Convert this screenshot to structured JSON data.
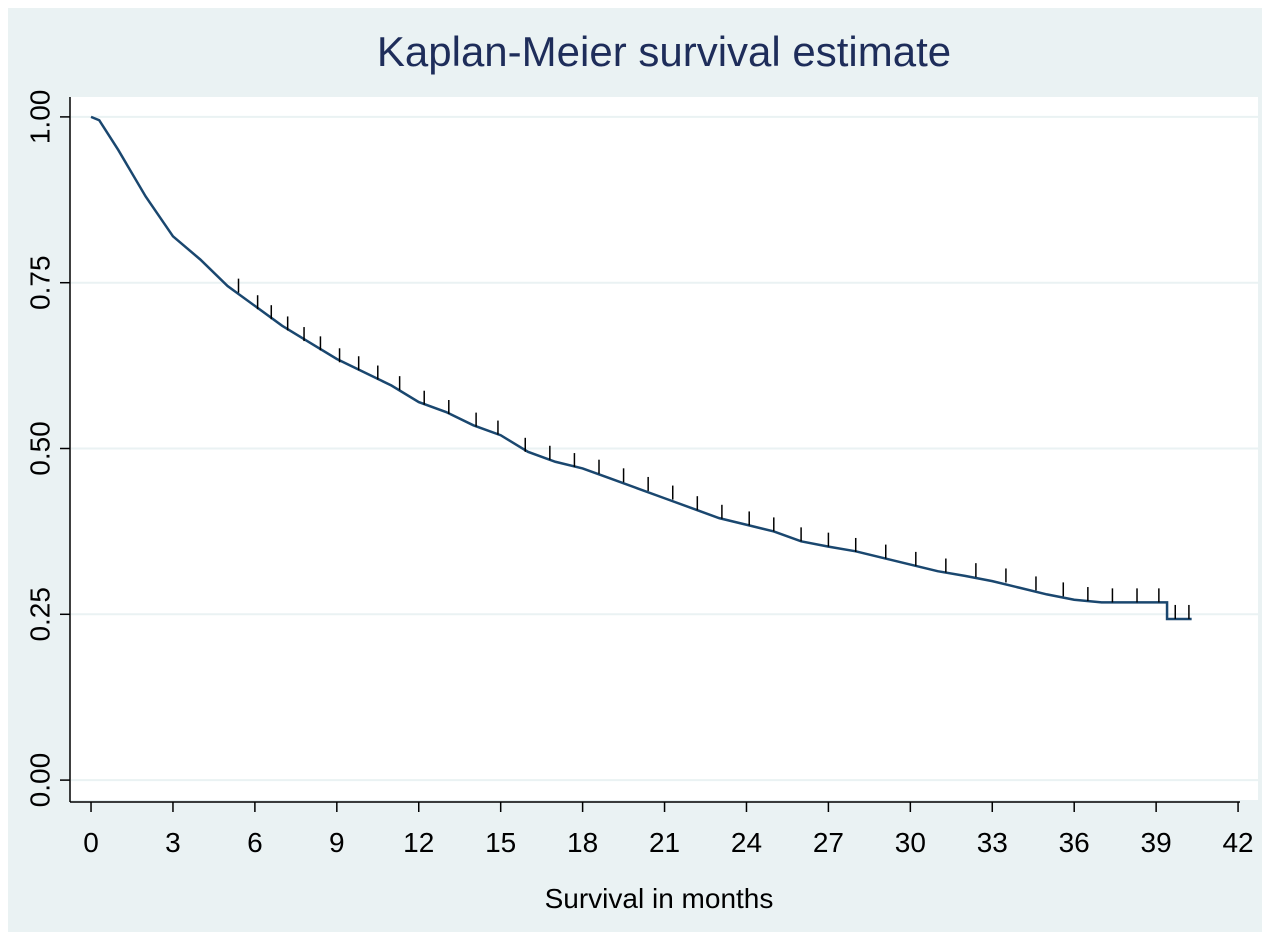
{
  "chart_data": {
    "type": "line",
    "title": "Kaplan-Meier survival estimate",
    "xlabel": "Survival in months",
    "xlim": [
      -0.77,
      42.73
    ],
    "ylim": [
      -0.03,
      1.03
    ],
    "xticks": [
      0,
      3,
      6,
      9,
      12,
      15,
      18,
      21,
      24,
      27,
      30,
      33,
      36,
      39,
      42
    ],
    "yticks": [
      {
        "value": 0,
        "label": "0.00"
      },
      {
        "value": 0.25,
        "label": "0.25"
      },
      {
        "value": 0.5,
        "label": "0.50"
      },
      {
        "value": 0.75,
        "label": "0.75"
      },
      {
        "value": 1,
        "label": "1.00"
      }
    ],
    "grid": true,
    "series": [
      {
        "color": "#1a476f",
        "x": [
          0,
          0.3,
          1,
          2,
          3,
          4,
          5,
          6,
          7,
          8,
          9,
          10,
          11,
          12,
          13,
          14,
          15,
          16,
          17,
          18,
          19,
          20,
          21,
          22,
          23,
          24,
          25,
          26,
          27,
          28,
          29,
          30,
          31,
          32,
          33,
          34,
          35,
          36,
          37,
          38,
          39.4,
          39.4,
          40.3
        ],
        "values": [
          1,
          0.995,
          0.95,
          0.88,
          0.82,
          0.785,
          0.745,
          0.715,
          0.685,
          0.66,
          0.635,
          0.615,
          0.595,
          0.57,
          0.555,
          0.535,
          0.52,
          0.495,
          0.48,
          0.47,
          0.455,
          0.44,
          0.425,
          0.41,
          0.395,
          0.385,
          0.375,
          0.36,
          0.352,
          0.345,
          0.335,
          0.325,
          0.315,
          0.308,
          0.3,
          0.29,
          0.28,
          0.272,
          0.268,
          0.268,
          0.268,
          0.243,
          0.243
        ]
      }
    ],
    "censored": {
      "color": "#000000",
      "x": [
        5.4,
        6.1,
        6.6,
        7.2,
        7.8,
        8.4,
        9.1,
        9.8,
        10.5,
        11.3,
        12.2,
        13.1,
        14.1,
        14.9,
        15.9,
        16.8,
        17.7,
        18.6,
        19.5,
        20.4,
        21.3,
        22.2,
        23.1,
        24.1,
        25.0,
        26.0,
        27.0,
        28.0,
        29.1,
        30.2,
        31.3,
        32.4,
        33.5,
        34.6,
        35.6,
        36.5,
        37.4,
        38.3,
        39.1,
        39.7,
        40.2
      ],
      "values": [
        0.735,
        0.71,
        0.695,
        0.678,
        0.662,
        0.648,
        0.63,
        0.618,
        0.604,
        0.588,
        0.566,
        0.552,
        0.533,
        0.521,
        0.495,
        0.483,
        0.472,
        0.462,
        0.449,
        0.436,
        0.423,
        0.407,
        0.394,
        0.384,
        0.375,
        0.36,
        0.352,
        0.344,
        0.334,
        0.323,
        0.313,
        0.306,
        0.298,
        0.286,
        0.277,
        0.27,
        0.268,
        0.268,
        0.268,
        0.243,
        0.243
      ]
    }
  }
}
